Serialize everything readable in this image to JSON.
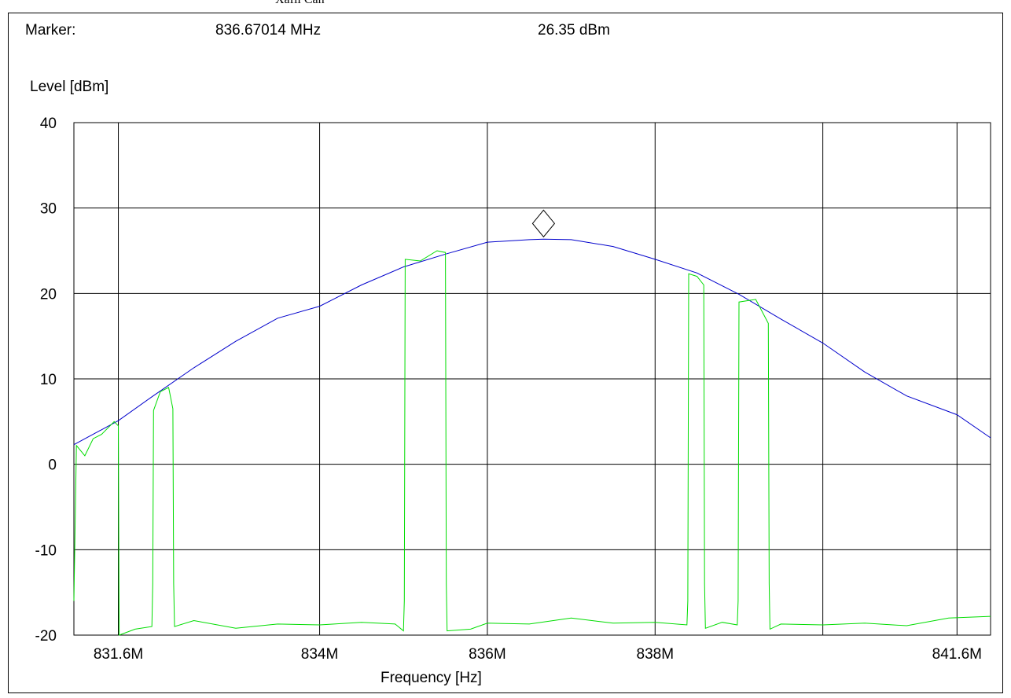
{
  "header": {
    "cut_label": "Xafil Can",
    "marker_label": "Marker:",
    "marker_frequency": "836.67014 MHz",
    "marker_level": "26.35 dBm"
  },
  "chart_data": {
    "type": "line",
    "ylabel": "Level [dBm]",
    "xlabel": "Frequency [Hz]",
    "xlim": [
      831.07,
      842.0
    ],
    "ylim": [
      -20,
      40
    ],
    "y_ticks": [
      40,
      30,
      20,
      10,
      0,
      -10,
      -20
    ],
    "y_tick_labels": [
      "40",
      "30",
      "20",
      "10",
      "0",
      "-10",
      "-20"
    ],
    "x_gridlines_mhz": [
      831.6,
      834.0,
      836.0,
      838.0,
      840.0,
      841.6
    ],
    "x_tick_labels": [
      {
        "x": 831.6,
        "label": "831.6M"
      },
      {
        "x": 834.0,
        "label": "834M"
      },
      {
        "x": 836.0,
        "label": "836M"
      },
      {
        "x": 838.0,
        "label": "838M"
      },
      {
        "x": 841.6,
        "label": "841.6M"
      }
    ],
    "grid": true,
    "marker": {
      "x": 836.67014,
      "y": 26.35,
      "shape": "diamond"
    },
    "series": [
      {
        "color": "#0000cc",
        "x": [
          831.07,
          831.6,
          832.0,
          832.5,
          833.0,
          833.5,
          834.0,
          834.5,
          835.0,
          835.5,
          836.0,
          836.5,
          836.67,
          837.0,
          837.5,
          838.0,
          838.5,
          839.0,
          839.5,
          840.0,
          840.5,
          841.0,
          841.6,
          842.0
        ],
        "y": [
          2.3,
          5.1,
          7.9,
          11.3,
          14.4,
          17.1,
          18.5,
          21.0,
          23.1,
          24.6,
          26.0,
          26.3,
          26.35,
          26.3,
          25.5,
          24.0,
          22.4,
          19.9,
          17.0,
          14.2,
          10.8,
          8.0,
          5.8,
          3.1
        ]
      },
      {
        "color": "#00dd00",
        "x": [
          831.07,
          831.1,
          831.2,
          831.3,
          831.4,
          831.5,
          831.55,
          831.6,
          831.61,
          831.8,
          832.0,
          832.01,
          832.02,
          832.1,
          832.2,
          832.25,
          832.26,
          832.27,
          832.5,
          833.0,
          833.5,
          834.0,
          834.5,
          834.9,
          835.0,
          835.01,
          835.02,
          835.2,
          835.4,
          835.5,
          835.51,
          835.52,
          835.8,
          836.0,
          836.5,
          837.0,
          837.5,
          838.0,
          838.38,
          838.39,
          838.4,
          838.5,
          838.58,
          838.59,
          838.6,
          838.8,
          838.98,
          838.99,
          839.0,
          839.2,
          839.35,
          839.36,
          839.37,
          839.5,
          840.0,
          840.5,
          841.0,
          841.5,
          842.0
        ],
        "y": [
          -16.0,
          2.2,
          1.0,
          3.0,
          3.5,
          4.5,
          5.0,
          4.5,
          -20.0,
          -19.3,
          -19.0,
          -14.0,
          6.3,
          8.5,
          9.0,
          6.5,
          -14.0,
          -19.0,
          -18.3,
          -19.2,
          -18.7,
          -18.8,
          -18.5,
          -18.7,
          -19.5,
          -16.0,
          24.0,
          23.8,
          25.0,
          24.8,
          -14.0,
          -19.5,
          -19.3,
          -18.6,
          -18.7,
          -18.0,
          -18.6,
          -18.5,
          -18.8,
          -16.0,
          22.3,
          22.0,
          21.0,
          -14.0,
          -19.2,
          -18.5,
          -18.8,
          -16.0,
          19.0,
          19.3,
          16.5,
          -14.0,
          -19.3,
          -18.7,
          -18.8,
          -18.6,
          -18.9,
          -18.0,
          -17.8
        ]
      }
    ]
  }
}
